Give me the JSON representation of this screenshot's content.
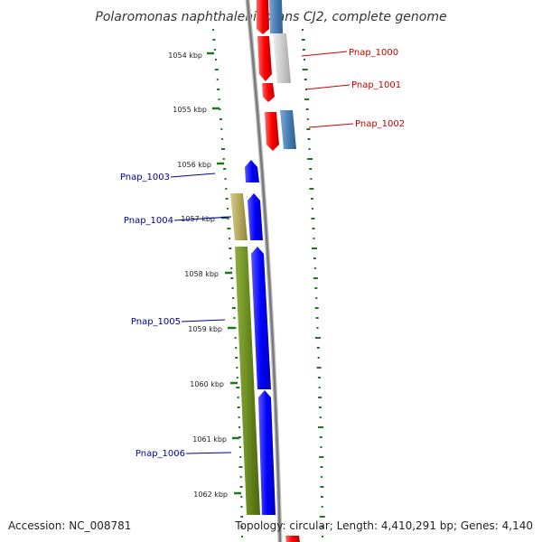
{
  "title": "Polaromonas naphthalenivorans CJ2, complete genome",
  "ticks": [
    "1054 kbp",
    "1055 kbp",
    "1056 kbp",
    "1057 kbp",
    "1058 kbp",
    "1059 kbp",
    "1060 kbp",
    "1061 kbp",
    "1062 kbp"
  ],
  "genes": [
    {
      "name": "Pnap_1000",
      "color": "#cc0000"
    },
    {
      "name": "Pnap_1001",
      "color": "#cc0000"
    },
    {
      "name": "Pnap_1002",
      "color": "#cc0000"
    },
    {
      "name": "Pnap_1003",
      "color": "#000099"
    },
    {
      "name": "Pnap_1004",
      "color": "#000099"
    },
    {
      "name": "Pnap_1005",
      "color": "#000099"
    },
    {
      "name": "Pnap_1006",
      "color": "#000099"
    }
  ],
  "footer": {
    "accession": "Accession: NC_008781",
    "summary": "Topology: circular; Length: 4,410,291 bp; Genes: 4,140"
  },
  "colors": {
    "forward_cds": "#ff1a1a",
    "reverse_cds": "#0000ff",
    "feature_gray": "#c8c8c8",
    "feature_steelblue": "#4a7fb5",
    "feature_olive": "#6b8c1f",
    "feature_khaki": "#b5a95c",
    "gc_dots": "#1a7a1a",
    "backbone": "#888888"
  }
}
